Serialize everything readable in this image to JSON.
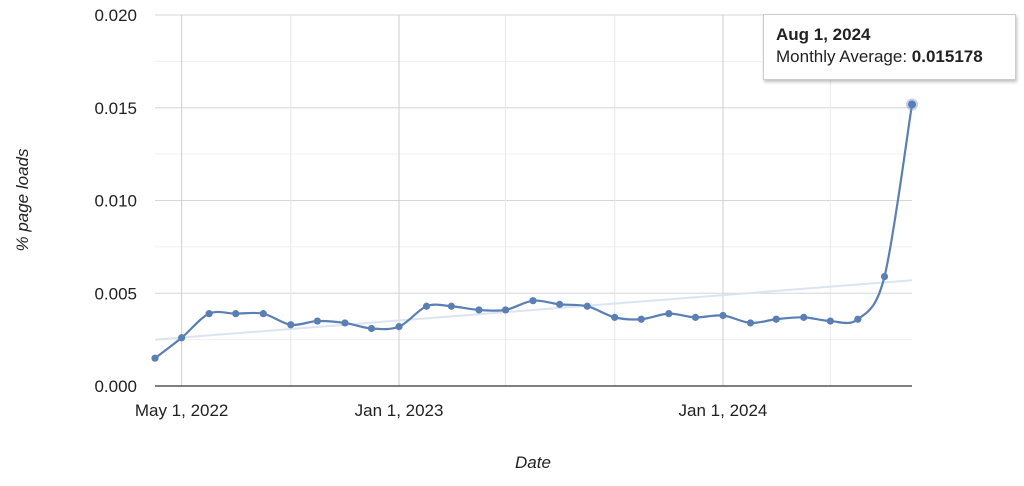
{
  "chart_data": {
    "type": "line",
    "xlabel": "Date",
    "ylabel": "% page loads",
    "ylim": [
      0,
      0.02
    ],
    "y_ticks": [
      "0.000",
      "0.005",
      "0.010",
      "0.015",
      "0.020"
    ],
    "x_range": [
      "2022-04-01",
      "2024-08-01"
    ],
    "x_tick_labels": [
      {
        "date": "2022-05-01",
        "label": "May 1, 2022"
      },
      {
        "date": "2023-01-01",
        "label": "Jan 1, 2023"
      },
      {
        "date": "2024-01-01",
        "label": "Jan 1, 2024"
      }
    ],
    "x_gridlines": [
      "2022-05-01",
      "2022-09-01",
      "2023-01-01",
      "2023-05-01",
      "2023-09-01",
      "2024-01-01",
      "2024-05-01"
    ],
    "grid": true,
    "colors": {
      "series": "#5a7fb5",
      "trendline": "#dbe4f0",
      "highlight": "#7b98c8"
    },
    "series": [
      {
        "x": [
          "2022-04-01",
          "2022-05-01",
          "2022-06-01",
          "2022-07-01",
          "2022-08-01",
          "2022-09-01",
          "2022-10-01",
          "2022-11-01",
          "2022-12-01",
          "2023-01-01",
          "2023-02-01",
          "2023-03-01",
          "2023-04-01",
          "2023-05-01",
          "2023-06-01",
          "2023-07-01",
          "2023-08-01",
          "2023-09-01",
          "2023-10-01",
          "2023-11-01",
          "2023-12-01",
          "2024-01-01",
          "2024-02-01",
          "2024-03-01",
          "2024-04-01",
          "2024-05-01",
          "2024-06-01",
          "2024-07-01",
          "2024-08-01"
        ],
        "values": [
          0.0015,
          0.0026,
          0.0039,
          0.0039,
          0.0039,
          0.0033,
          0.0035,
          0.0034,
          0.0031,
          0.0032,
          0.0043,
          0.0043,
          0.0041,
          0.0041,
          0.0046,
          0.0044,
          0.0043,
          0.0037,
          0.0036,
          0.0039,
          0.0037,
          0.0038,
          0.0034,
          0.0036,
          0.0037,
          0.0035,
          0.0036,
          0.0059,
          0.015178
        ]
      }
    ],
    "trendline": {
      "x": [
        "2022-04-01",
        "2024-08-01"
      ],
      "values": [
        0.0025,
        0.0057
      ]
    },
    "tooltip": {
      "date": "Aug 1, 2024",
      "label": "Monthly Average: ",
      "value": "0.015178"
    }
  }
}
